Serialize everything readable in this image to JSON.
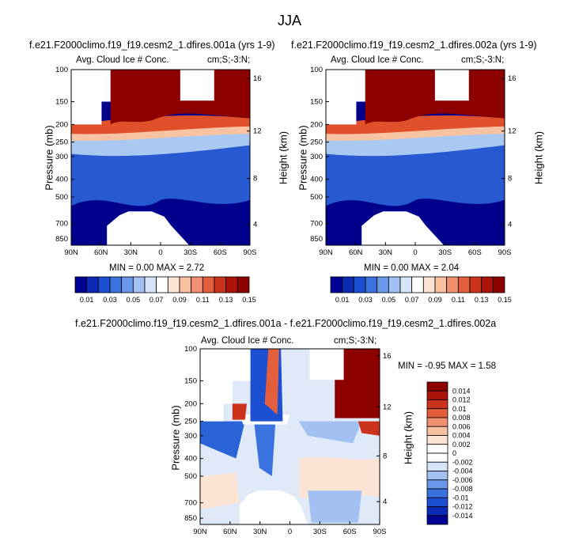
{
  "figure": {
    "title": "JJA",
    "colors": {
      "blue_dark": "#00008c",
      "blue_mid": "#2b63d9",
      "blue_light": "#a9c9f2",
      "white": "#ffffff",
      "peach": "#f7c3a3",
      "red_mid": "#e0502a",
      "red_dark": "#8c0000",
      "missing": "#ffffff"
    }
  },
  "chart_data": [
    {
      "type": "heatmap",
      "id": "panel_001a",
      "title": "f.e21.F2000climo.f19_f19.cesm2_1.dfires.001a (yrs 1-9)",
      "left_label": "Avg. Cloud Ice # Conc.",
      "right_label": "cm;S;-3:N;",
      "xlabel": "",
      "ylabel": "Pressure (mb)",
      "y2label": "Height (km)",
      "x_ticks": [
        "90N",
        "60N",
        "30N",
        "0",
        "30S",
        "60S",
        "90S"
      ],
      "y_ticks": [
        "100",
        "150",
        "200",
        "250",
        "300",
        "400",
        "500",
        "700",
        "850"
      ],
      "y2_ticks": [
        "16",
        "12",
        "8",
        "4"
      ],
      "stats": "MIN =  0.00  MAX =  2.72",
      "min": 0.0,
      "max": 2.72
    },
    {
      "type": "heatmap",
      "id": "panel_002a",
      "title": "f.e21.F2000climo.f19_f19.cesm2_1.dfires.002a (yrs 1-9)",
      "left_label": "Avg. Cloud Ice # Conc.",
      "right_label": "cm;S;-3:N;",
      "xlabel": "",
      "ylabel": "Pressure (mb)",
      "y2label": "Height (km)",
      "x_ticks": [
        "90N",
        "60N",
        "30N",
        "0",
        "30S",
        "60S",
        "90S"
      ],
      "y_ticks": [
        "100",
        "150",
        "200",
        "250",
        "300",
        "400",
        "500",
        "700",
        "850"
      ],
      "y2_ticks": [
        "16",
        "12",
        "8",
        "4"
      ],
      "stats": "MIN =  0.00  MAX =  2.04",
      "min": 0.0,
      "max": 2.04
    },
    {
      "type": "heatmap",
      "id": "panel_diff",
      "title": "f.e21.F2000climo.f19_f19.cesm2_1.dfires.001a - f.e21.F2000climo.f19_f19.cesm2_1.dfires.002a",
      "left_label": "Avg. Cloud Ice # Conc.",
      "right_label": "cm;S;-3:N;",
      "xlabel": "",
      "ylabel": "Pressure (mb)",
      "y2label": "Height (km)",
      "x_ticks": [
        "90N",
        "60N",
        "30N",
        "0",
        "30S",
        "60S",
        "90S"
      ],
      "y_ticks": [
        "100",
        "150",
        "200",
        "250",
        "300",
        "400",
        "500",
        "700",
        "850"
      ],
      "y2_ticks": [
        "16",
        "12",
        "8",
        "4"
      ],
      "stats": "MIN = -0.95  MAX =  1.58",
      "min": -0.95,
      "max": 1.58
    }
  ],
  "colorbars": {
    "shared": {
      "orientation": "horizontal",
      "labels": [
        "0.01",
        "0.03",
        "0.05",
        "0.07",
        "0.09",
        "0.11",
        "0.13",
        "0.15"
      ],
      "colors": [
        "#000096",
        "#0a2ab4",
        "#1c4fd1",
        "#3a72e0",
        "#6a97ea",
        "#a3c0f3",
        "#d6e4fa",
        "#ffffff",
        "#fde4d4",
        "#f8bfa0",
        "#f09070",
        "#e25e3c",
        "#cc331c",
        "#ab1208",
        "#8c0000"
      ]
    },
    "diff": {
      "orientation": "vertical",
      "labels": [
        "0.014",
        "0.012",
        "0.01",
        "0.008",
        "0.006",
        "0.004",
        "0.002",
        "0",
        "-0.002",
        "-0.004",
        "-0.006",
        "-0.008",
        "-0.01",
        "-0.012",
        "-0.014"
      ],
      "colors": [
        "#8c0000",
        "#ab1208",
        "#cc331c",
        "#e25e3c",
        "#f09070",
        "#f8bfa0",
        "#fde4d4",
        "#ffffff",
        "#ffffff",
        "#d6e4fa",
        "#a3c0f3",
        "#6a97ea",
        "#3a72e0",
        "#1c4fd1",
        "#0a2ab4",
        "#000096"
      ]
    }
  }
}
